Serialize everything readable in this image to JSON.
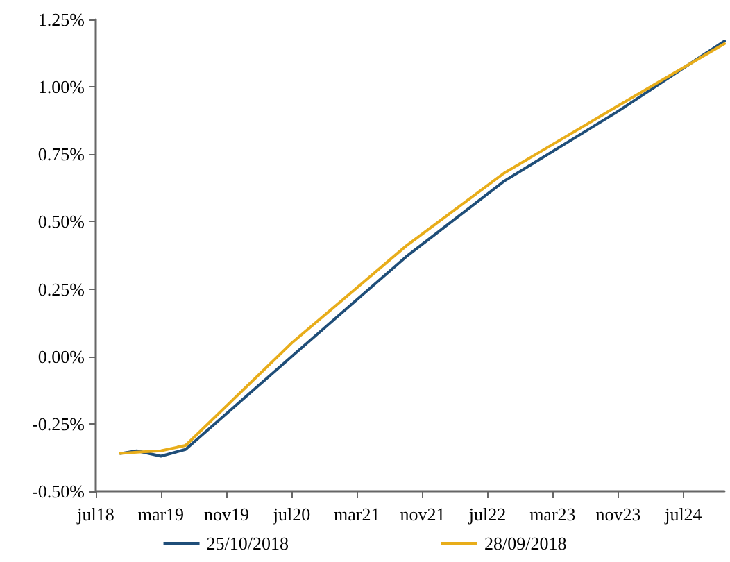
{
  "chart_data": {
    "type": "line",
    "x": [
      "2018-10",
      "2018-12",
      "2019-03",
      "2019-06",
      "2020-07",
      "2021-09",
      "2022-09",
      "2023-11",
      "2024-12"
    ],
    "series": [
      {
        "name": "25/10/2018",
        "color": "#1f4e79",
        "values": [
          -0.36,
          -0.35,
          -0.37,
          -0.345,
          0.0,
          0.37,
          0.65,
          0.91,
          1.17
        ]
      },
      {
        "name": "28/09/2018",
        "color": "#e8ad1a",
        "values": [
          -0.36,
          -0.355,
          -0.35,
          -0.33,
          0.05,
          0.41,
          0.68,
          0.93,
          1.16
        ]
      }
    ],
    "xlim": [
      "2018-07",
      "2024-12"
    ],
    "xticks": [
      {
        "value": "2018-07",
        "label": "jul18"
      },
      {
        "value": "2019-03",
        "label": "mar19"
      },
      {
        "value": "2019-11",
        "label": "nov19"
      },
      {
        "value": "2020-07",
        "label": "jul20"
      },
      {
        "value": "2021-03",
        "label": "mar21"
      },
      {
        "value": "2021-11",
        "label": "nov21"
      },
      {
        "value": "2022-07",
        "label": "jul22"
      },
      {
        "value": "2023-03",
        "label": "mar23"
      },
      {
        "value": "2023-11",
        "label": "nov23"
      },
      {
        "value": "2024-07",
        "label": "jul24"
      }
    ],
    "ylim": [
      -0.5,
      1.25
    ],
    "yticks": [
      {
        "value": -0.5,
        "label": "-0.50%"
      },
      {
        "value": -0.25,
        "label": "-0.25%"
      },
      {
        "value": 0,
        "label": "0.00%"
      },
      {
        "value": 0.25,
        "label": "0.25%"
      },
      {
        "value": 0.5,
        "label": "0.50%"
      },
      {
        "value": 0.75,
        "label": "0.75%"
      },
      {
        "value": 1.0,
        "label": "1.00%"
      },
      {
        "value": 1.25,
        "label": "1.25%"
      }
    ],
    "grid": false,
    "legend": "bottom",
    "marker": "none",
    "line_style": "solid"
  }
}
